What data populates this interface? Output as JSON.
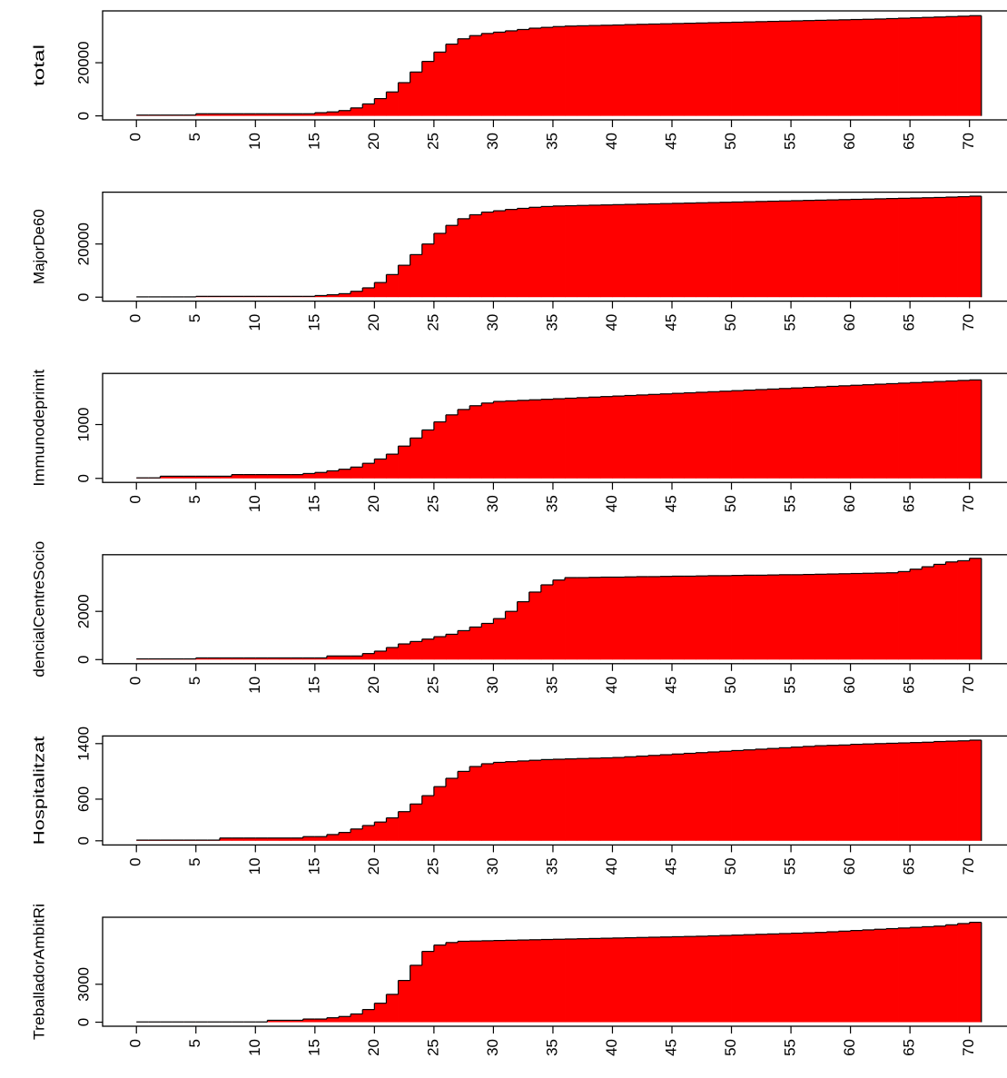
{
  "chart_data": [
    {
      "type": "step-area",
      "ylabel": "total",
      "color": "#ff0000",
      "x": [
        0,
        1,
        2,
        3,
        4,
        5,
        6,
        7,
        8,
        9,
        10,
        11,
        12,
        13,
        14,
        15,
        16,
        17,
        18,
        19,
        20,
        21,
        22,
        23,
        24,
        25,
        26,
        27,
        28,
        29,
        30,
        31,
        32,
        33,
        34,
        35,
        36,
        37,
        38,
        39,
        40,
        41,
        42,
        43,
        44,
        45,
        46,
        47,
        48,
        49,
        50,
        51,
        52,
        53,
        54,
        55,
        56,
        57,
        58,
        59,
        60,
        61,
        62,
        63,
        64,
        65,
        66,
        67,
        68,
        69,
        70
      ],
      "values": [
        300,
        300,
        300,
        300,
        300,
        800,
        800,
        800,
        800,
        800,
        800,
        800,
        800,
        800,
        800,
        1200,
        1500,
        2000,
        3000,
        4500,
        6500,
        9000,
        12500,
        16500,
        20500,
        24000,
        27000,
        29000,
        30200,
        31000,
        31500,
        32000,
        32500,
        33000,
        33300,
        33600,
        33800,
        33900,
        34000,
        34100,
        34200,
        34350,
        34450,
        34550,
        34650,
        34750,
        34850,
        34950,
        35050,
        35150,
        35250,
        35350,
        35450,
        35550,
        35650,
        35750,
        35850,
        35950,
        36050,
        36150,
        36250,
        36350,
        36450,
        36600,
        36750,
        36900,
        37050,
        37200,
        37350,
        37500,
        37700
      ],
      "xlim": [
        -2.84,
        73.84
      ],
      "xticks": [
        0,
        5,
        10,
        15,
        20,
        25,
        30,
        35,
        40,
        45,
        50,
        55,
        60,
        65,
        70
      ],
      "ylim": [
        -1500,
        39500
      ],
      "yticks": [
        0,
        20000
      ]
    },
    {
      "type": "step-area",
      "ylabel": "MajorDe60",
      "color": "#ff0000",
      "x": [
        0,
        1,
        2,
        3,
        4,
        5,
        6,
        7,
        8,
        9,
        10,
        11,
        12,
        13,
        14,
        15,
        16,
        17,
        18,
        19,
        20,
        21,
        22,
        23,
        24,
        25,
        26,
        27,
        28,
        29,
        30,
        31,
        32,
        33,
        34,
        35,
        36,
        37,
        38,
        39,
        40,
        41,
        42,
        43,
        44,
        45,
        46,
        47,
        48,
        49,
        50,
        51,
        52,
        53,
        54,
        55,
        56,
        57,
        58,
        59,
        60,
        61,
        62,
        63,
        64,
        65,
        66,
        67,
        68,
        69,
        70
      ],
      "values": [
        100,
        100,
        100,
        100,
        100,
        300,
        300,
        300,
        300,
        300,
        300,
        300,
        300,
        300,
        300,
        600,
        900,
        1300,
        2200,
        3500,
        5500,
        8500,
        12000,
        16000,
        20000,
        24000,
        27000,
        29500,
        31000,
        32000,
        32500,
        33000,
        33400,
        33800,
        34100,
        34300,
        34400,
        34500,
        34600,
        34700,
        34800,
        34900,
        35000,
        35100,
        35200,
        35300,
        35400,
        35500,
        35600,
        35700,
        35800,
        35900,
        36000,
        36100,
        36200,
        36300,
        36400,
        36500,
        36600,
        36700,
        36800,
        36900,
        37000,
        37100,
        37200,
        37300,
        37400,
        37500,
        37650,
        37800,
        38000
      ],
      "xlim": [
        -2.84,
        73.84
      ],
      "xticks": [
        0,
        5,
        10,
        15,
        20,
        25,
        30,
        35,
        40,
        45,
        50,
        55,
        60,
        65,
        70
      ],
      "ylim": [
        -1500,
        39500
      ],
      "yticks": [
        0,
        20000
      ]
    },
    {
      "type": "step-area",
      "ylabel": "Immunodeprimit",
      "color": "#ff0000",
      "x": [
        0,
        1,
        2,
        3,
        4,
        5,
        6,
        7,
        8,
        9,
        10,
        11,
        12,
        13,
        14,
        15,
        16,
        17,
        18,
        19,
        20,
        21,
        22,
        23,
        24,
        25,
        26,
        27,
        28,
        29,
        30,
        31,
        32,
        33,
        34,
        35,
        36,
        37,
        38,
        39,
        40,
        41,
        42,
        43,
        44,
        45,
        46,
        47,
        48,
        49,
        50,
        51,
        52,
        53,
        54,
        55,
        56,
        57,
        58,
        59,
        60,
        61,
        62,
        63,
        64,
        65,
        66,
        67,
        68,
        69,
        70
      ],
      "values": [
        10,
        10,
        40,
        40,
        40,
        40,
        40,
        40,
        70,
        70,
        70,
        70,
        70,
        70,
        90,
        110,
        140,
        170,
        210,
        280,
        360,
        450,
        600,
        750,
        900,
        1050,
        1180,
        1280,
        1350,
        1400,
        1430,
        1440,
        1450,
        1460,
        1470,
        1480,
        1490,
        1500,
        1510,
        1520,
        1530,
        1540,
        1550,
        1560,
        1570,
        1580,
        1590,
        1600,
        1610,
        1620,
        1630,
        1640,
        1650,
        1660,
        1670,
        1680,
        1690,
        1700,
        1710,
        1720,
        1730,
        1740,
        1750,
        1760,
        1770,
        1780,
        1790,
        1800,
        1810,
        1820,
        1830
      ],
      "xlim": [
        -2.84,
        73.84
      ],
      "xticks": [
        0,
        5,
        10,
        15,
        20,
        25,
        30,
        35,
        40,
        45,
        50,
        55,
        60,
        65,
        70
      ],
      "ylim": [
        -75,
        1950
      ],
      "yticks": [
        0,
        1000
      ]
    },
    {
      "type": "step-area",
      "ylabel": "dencialCentreSocio",
      "color": "#ff0000",
      "x": [
        0,
        1,
        2,
        3,
        4,
        5,
        6,
        7,
        8,
        9,
        10,
        11,
        12,
        13,
        14,
        15,
        16,
        17,
        18,
        19,
        20,
        21,
        22,
        23,
        24,
        25,
        26,
        27,
        28,
        29,
        30,
        31,
        32,
        33,
        34,
        35,
        36,
        37,
        38,
        39,
        40,
        41,
        42,
        43,
        44,
        45,
        46,
        47,
        48,
        49,
        50,
        51,
        52,
        53,
        54,
        55,
        56,
        57,
        58,
        59,
        60,
        61,
        62,
        63,
        64,
        65,
        66,
        67,
        68,
        69,
        70
      ],
      "values": [
        30,
        30,
        30,
        30,
        30,
        70,
        70,
        70,
        70,
        70,
        70,
        70,
        70,
        70,
        70,
        70,
        150,
        150,
        150,
        250,
        350,
        500,
        650,
        750,
        850,
        950,
        1050,
        1200,
        1350,
        1500,
        1700,
        2000,
        2400,
        2800,
        3100,
        3300,
        3400,
        3400,
        3410,
        3420,
        3420,
        3430,
        3440,
        3440,
        3450,
        3460,
        3460,
        3470,
        3480,
        3480,
        3490,
        3500,
        3500,
        3510,
        3520,
        3520,
        3530,
        3540,
        3550,
        3560,
        3570,
        3580,
        3590,
        3600,
        3650,
        3750,
        3850,
        3950,
        4050,
        4100,
        4200
      ],
      "xlim": [
        -2.84,
        73.84
      ],
      "xticks": [
        0,
        5,
        10,
        15,
        20,
        25,
        30,
        35,
        40,
        45,
        50,
        55,
        60,
        65,
        70
      ],
      "ylim": [
        -170,
        4350
      ],
      "yticks": [
        0,
        2000
      ]
    },
    {
      "type": "step-area",
      "ylabel": "Hospitalitzat",
      "color": "#ff0000",
      "x": [
        0,
        1,
        2,
        3,
        4,
        5,
        6,
        7,
        8,
        9,
        10,
        11,
        12,
        13,
        14,
        15,
        16,
        17,
        18,
        19,
        20,
        21,
        22,
        23,
        24,
        25,
        26,
        27,
        28,
        29,
        30,
        31,
        32,
        33,
        34,
        35,
        36,
        37,
        38,
        39,
        40,
        41,
        42,
        43,
        44,
        45,
        46,
        47,
        48,
        49,
        50,
        51,
        52,
        53,
        54,
        55,
        56,
        57,
        58,
        59,
        60,
        61,
        62,
        63,
        64,
        65,
        66,
        67,
        68,
        69,
        70
      ],
      "values": [
        10,
        10,
        10,
        10,
        10,
        10,
        10,
        40,
        40,
        40,
        40,
        40,
        40,
        40,
        60,
        60,
        90,
        120,
        170,
        220,
        270,
        330,
        420,
        530,
        650,
        780,
        900,
        1000,
        1070,
        1110,
        1130,
        1140,
        1150,
        1160,
        1170,
        1175,
        1180,
        1185,
        1190,
        1195,
        1200,
        1210,
        1220,
        1230,
        1240,
        1250,
        1260,
        1270,
        1280,
        1290,
        1300,
        1310,
        1320,
        1330,
        1340,
        1350,
        1360,
        1370,
        1375,
        1380,
        1390,
        1395,
        1400,
        1405,
        1410,
        1415,
        1420,
        1430,
        1435,
        1440,
        1450
      ],
      "xlim": [
        -2.84,
        73.84
      ],
      "xticks": [
        0,
        5,
        10,
        15,
        20,
        25,
        30,
        35,
        40,
        45,
        50,
        55,
        60,
        65,
        70
      ],
      "ylim": [
        -60,
        1510
      ],
      "yticks": [
        0,
        600,
        1400
      ]
    },
    {
      "type": "step-area",
      "ylabel": "TreballadorAmbitRi",
      "color": "#ff0000",
      "x": [
        0,
        1,
        2,
        3,
        4,
        5,
        6,
        7,
        8,
        9,
        10,
        11,
        12,
        13,
        14,
        15,
        16,
        17,
        18,
        19,
        20,
        21,
        22,
        23,
        24,
        25,
        26,
        27,
        28,
        29,
        30,
        31,
        32,
        33,
        34,
        35,
        36,
        37,
        38,
        39,
        40,
        41,
        42,
        43,
        44,
        45,
        46,
        47,
        48,
        49,
        50,
        51,
        52,
        53,
        54,
        55,
        56,
        57,
        58,
        59,
        60,
        61,
        62,
        63,
        64,
        65,
        66,
        67,
        68,
        69,
        70
      ],
      "values": [
        20,
        20,
        20,
        20,
        20,
        20,
        20,
        20,
        20,
        20,
        20,
        150,
        150,
        150,
        250,
        250,
        350,
        450,
        650,
        1000,
        1500,
        2200,
        3300,
        4500,
        5600,
        6100,
        6300,
        6400,
        6420,
        6440,
        6460,
        6480,
        6500,
        6520,
        6540,
        6560,
        6580,
        6600,
        6620,
        6640,
        6660,
        6680,
        6700,
        6720,
        6740,
        6760,
        6780,
        6800,
        6830,
        6860,
        6890,
        6920,
        6950,
        6980,
        7010,
        7040,
        7070,
        7100,
        7150,
        7200,
        7250,
        7300,
        7350,
        7400,
        7450,
        7500,
        7550,
        7600,
        7700,
        7800,
        7900
      ],
      "xlim": [
        -2.84,
        73.84
      ],
      "xticks": [
        0,
        5,
        10,
        15,
        20,
        25,
        30,
        35,
        40,
        45,
        50,
        55,
        60,
        65,
        70
      ],
      "ylim": [
        -320,
        8300
      ],
      "yticks": [
        0,
        3000
      ]
    }
  ]
}
